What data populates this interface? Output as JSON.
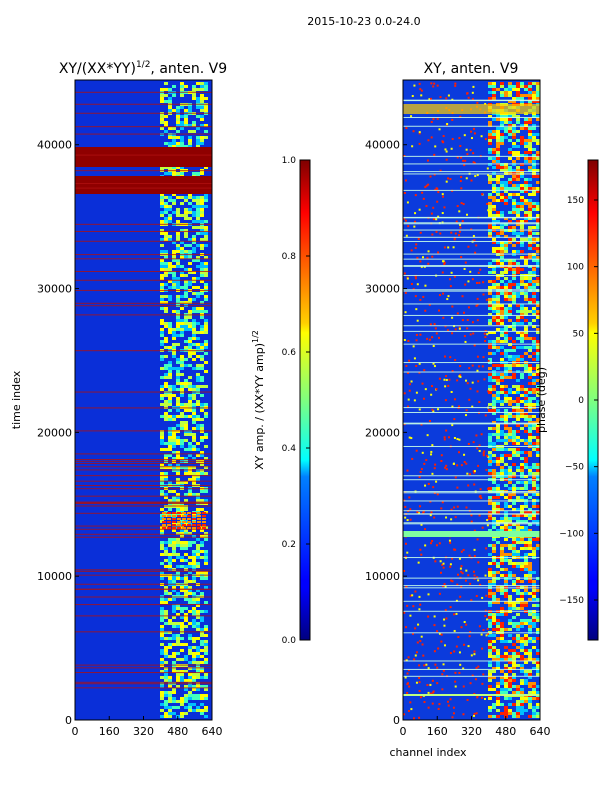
{
  "figure": {
    "suptitle": "2015-10-23 0.0-24.0"
  },
  "chart_data": [
    {
      "type": "heatmap",
      "title": "XY/(XX*YY)",
      "title_exponent": "1/2",
      "title_suffix": ", anten. V9",
      "xlabel": "",
      "ylabel": "time index",
      "xlim": [
        0,
        640
      ],
      "ylim": [
        0,
        44500
      ],
      "xticks": [
        0,
        160,
        320,
        480,
        640
      ],
      "yticks": [
        0,
        10000,
        20000,
        30000,
        40000
      ],
      "colorbar": {
        "label": "XY amp. / (XX*YY amp)",
        "label_exponent": "1/2",
        "range": [
          0.0,
          1.0
        ],
        "ticks": [
          "0.0",
          "0.2",
          "0.4",
          "0.6",
          "0.8",
          "1.0"
        ]
      },
      "colormap": "jet"
    },
    {
      "type": "heatmap",
      "title": "XY, anten. V9",
      "xlabel": "channel index",
      "ylabel": "",
      "xlim": [
        0,
        640
      ],
      "ylim": [
        0,
        44500
      ],
      "xticks": [
        0,
        160,
        320,
        480,
        640
      ],
      "yticks": [
        0,
        10000,
        20000,
        30000,
        40000
      ],
      "colorbar": {
        "label": "phase (deg)",
        "range": [
          -180,
          180
        ],
        "ticks": [
          "−150",
          "−100",
          "−50",
          "0",
          "50",
          "100",
          "150"
        ]
      },
      "colormap": "jet"
    }
  ]
}
